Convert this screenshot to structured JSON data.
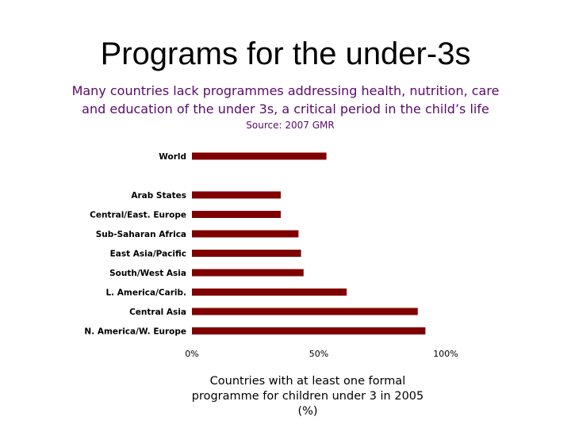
{
  "slide": {
    "title": "Programs for the under-3s",
    "subtitle_line1": "Many countries lack programmes addressing health, nutrition, care",
    "subtitle_line2": "and education of the under 3s, a critical period in the child’s life",
    "source": "Source: 2007 GMR",
    "caption_line1": "Countries with at least one formal",
    "caption_line2": "programme for children under 3 in 2005",
    "caption_line3": "(%)"
  },
  "colors": {
    "bar": "#800000",
    "accent_text": "#5a0a6a"
  },
  "chart_data": {
    "type": "bar",
    "orientation": "horizontal",
    "categories": [
      "World",
      "Arab States",
      "Central/East. Europe",
      "Sub-Saharan Africa",
      "East Asia/Pacific",
      "South/West Asia",
      "L. America/Carib.",
      "Central Asia",
      "N. America/W. Europe"
    ],
    "values": [
      53,
      35,
      35,
      42,
      43,
      44,
      61,
      89,
      92
    ],
    "xlim": [
      0,
      100
    ],
    "x_ticks": [
      "0%",
      "50%",
      "100%"
    ],
    "x_tick_values": [
      0,
      50,
      100
    ],
    "grid": false,
    "title": "",
    "xlabel": "Countries with at least one formal programme for children under 3 in 2005 (%)",
    "ylabel": ""
  }
}
